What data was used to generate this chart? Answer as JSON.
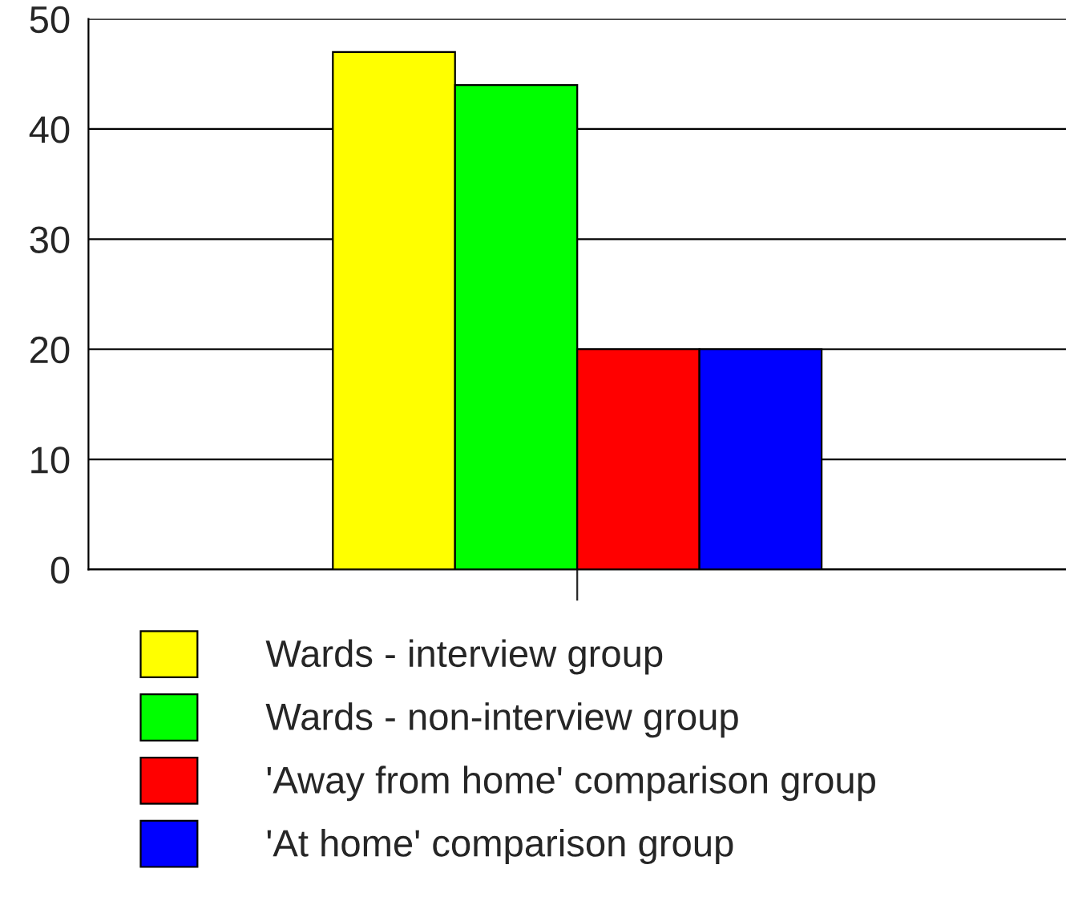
{
  "chart_data": {
    "type": "bar",
    "categories": [
      null
    ],
    "series": [
      {
        "name": "Wards - interview group",
        "color": "#ffff00",
        "values": [
          47
        ]
      },
      {
        "name": "Wards - non-interview group",
        "color": "#00ff00",
        "values": [
          44
        ]
      },
      {
        "name": "'Away from home' comparison group",
        "color": "#ff0000",
        "values": [
          20
        ]
      },
      {
        "name": "'At home' comparison group",
        "color": "#0000ff",
        "values": [
          20
        ]
      }
    ],
    "ylim": [
      0,
      50
    ],
    "yticks": [
      0,
      10,
      20,
      30,
      40,
      50
    ],
    "grid": "y",
    "legend": "bottom"
  }
}
